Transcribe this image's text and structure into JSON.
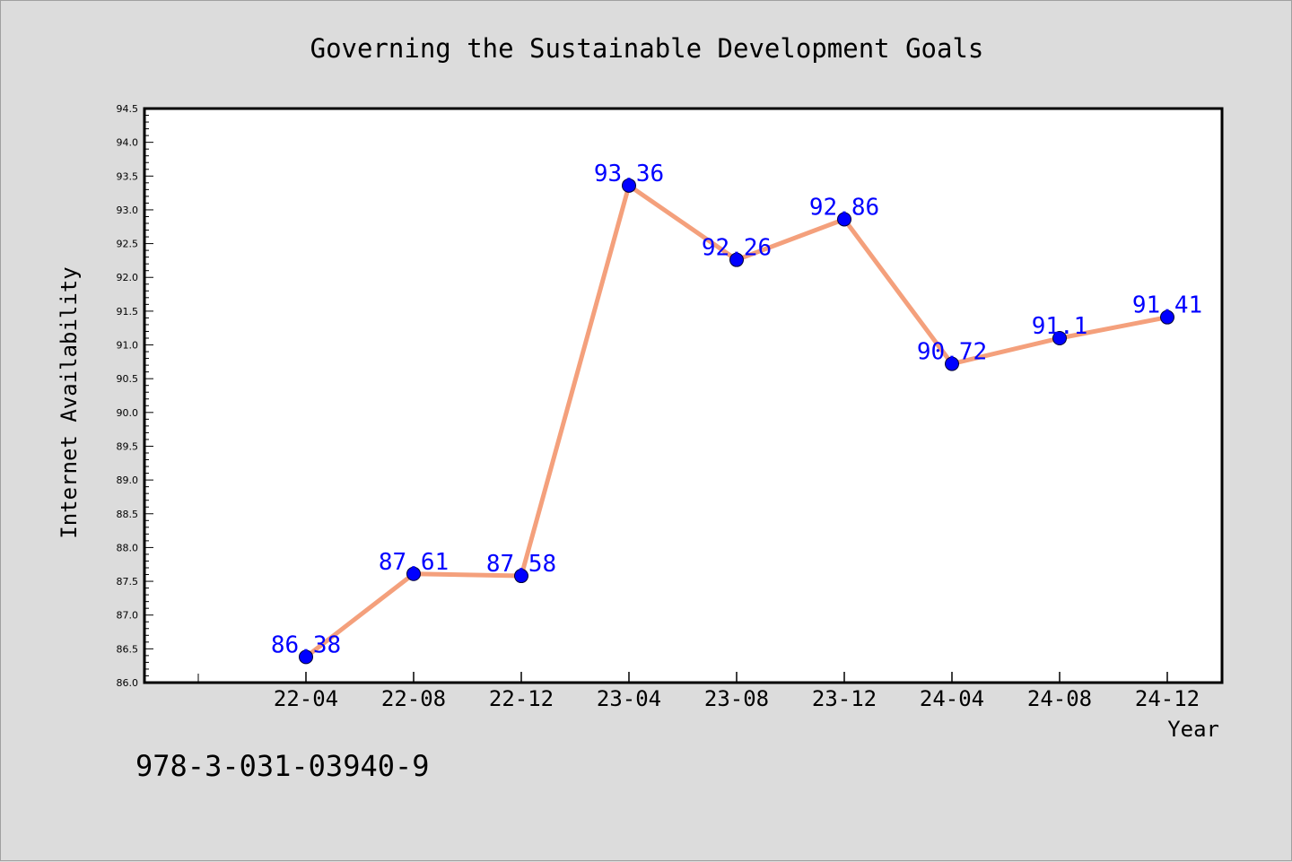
{
  "chart_data": {
    "type": "line",
    "title": "Governing the Sustainable Development Goals",
    "xlabel": "Year",
    "ylabel": "Internet Availability",
    "categories": [
      "22-04",
      "22-08",
      "22-12",
      "23-04",
      "23-08",
      "23-12",
      "24-04",
      "24-08",
      "24-12"
    ],
    "series": [
      {
        "values": [
          86.38,
          87.61,
          87.58,
          93.36,
          92.26,
          92.86,
          90.72,
          91.1,
          91.41
        ],
        "labels": [
          "86.38",
          "87.61",
          "87.58",
          "93.36",
          "92.26",
          "92.86",
          "90.72",
          "91.1",
          "91.41"
        ]
      }
    ],
    "ylim": [
      86.0,
      94.5
    ],
    "yticks": [
      "86.0",
      "86.5",
      "87.0",
      "87.5",
      "88.0",
      "88.5",
      "89.0",
      "89.5",
      "90.0",
      "90.5",
      "91.0",
      "91.5",
      "92.0",
      "92.5",
      "93.0",
      "93.5",
      "94.0",
      "94.5"
    ],
    "line_color": "#f4a07c",
    "marker_color": "#0000ff",
    "label_color": "#0000ff",
    "grid": false
  },
  "footer": {
    "isbn": "978-3-031-03940-9"
  }
}
